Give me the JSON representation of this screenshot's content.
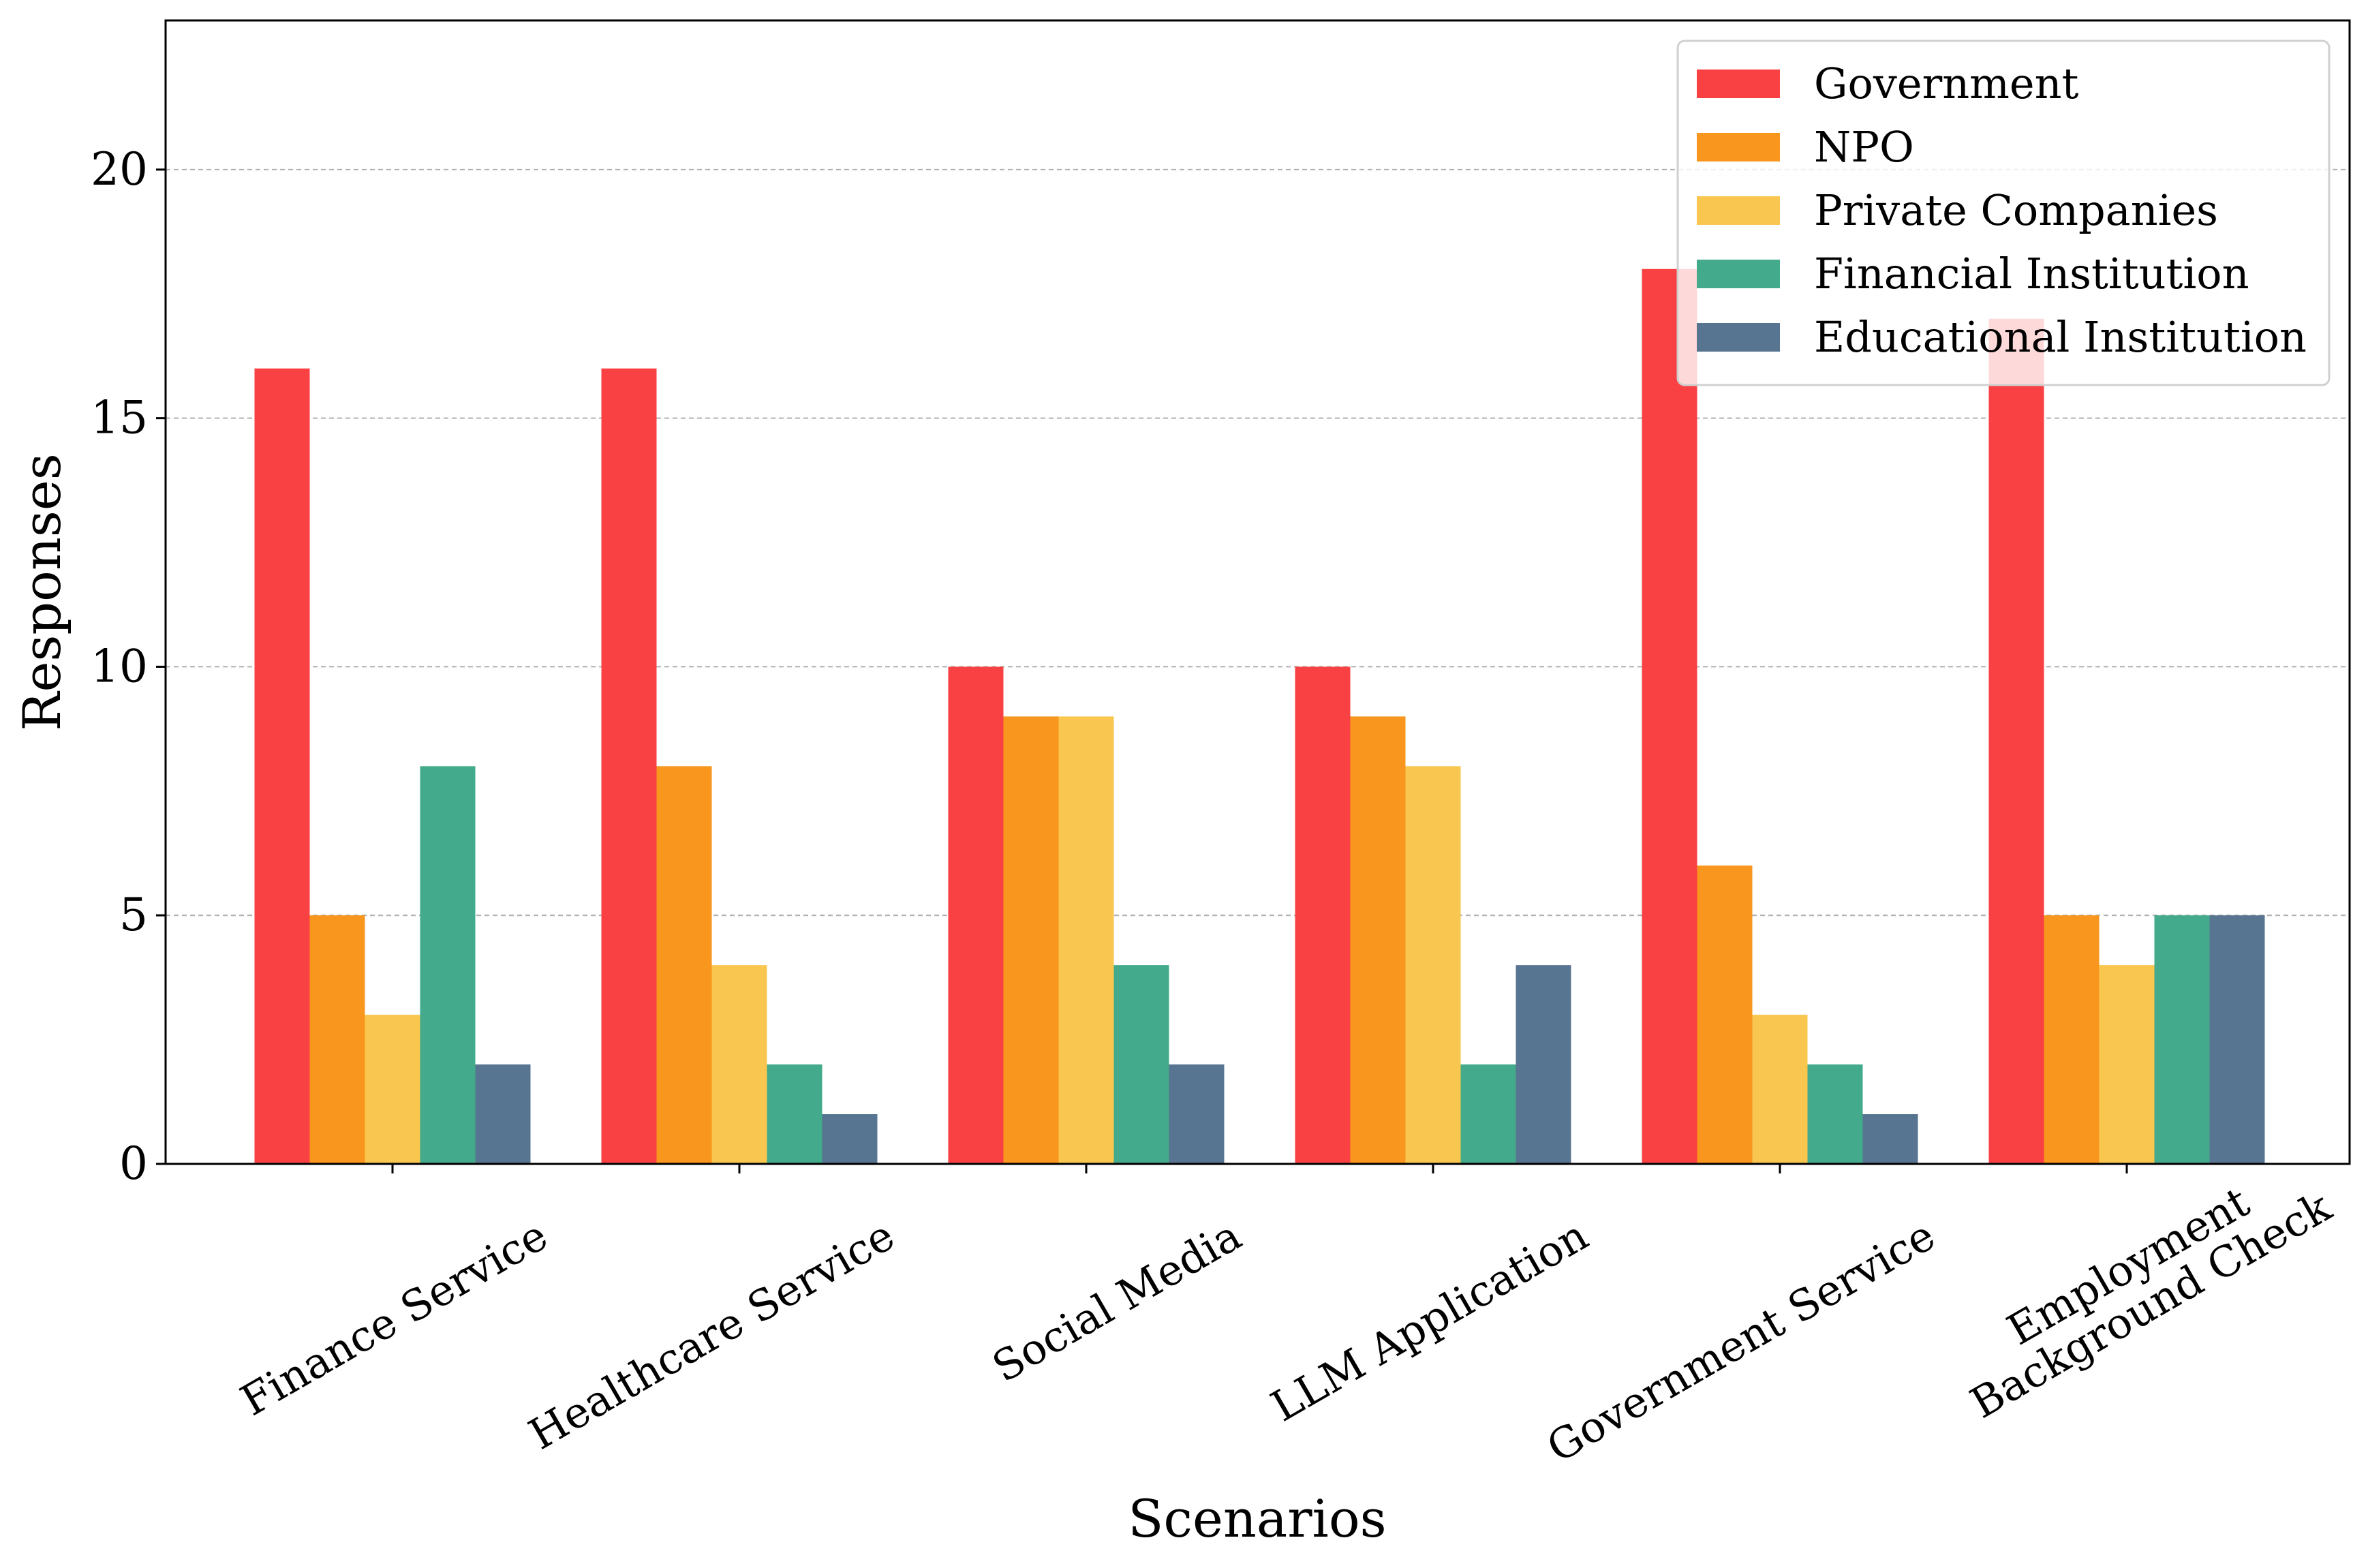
{
  "chart_data": {
    "type": "bar",
    "title": "",
    "xlabel": "Scenarios",
    "ylabel": "Responses",
    "ylim": [
      0,
      23
    ],
    "yticks": [
      0,
      5,
      10,
      15,
      20
    ],
    "grid": "horizontal-dashed",
    "legend_position": "top-right",
    "categories": [
      [
        "Finance Service"
      ],
      [
        "Healthcare Service"
      ],
      [
        "Social Media"
      ],
      [
        "LLM Application"
      ],
      [
        "Government Service"
      ],
      [
        "Employment",
        "Background Check"
      ]
    ],
    "series": [
      {
        "name": "Government",
        "color": "#f94144",
        "values": [
          16,
          16,
          10,
          10,
          18,
          17
        ]
      },
      {
        "name": "NPO",
        "color": "#f8961e",
        "values": [
          5,
          8,
          9,
          9,
          6,
          5
        ]
      },
      {
        "name": "Private Companies",
        "color": "#f9c74f",
        "values": [
          3,
          4,
          9,
          8,
          3,
          4
        ]
      },
      {
        "name": "Financial Institution",
        "color": "#43aa8b",
        "values": [
          8,
          2,
          4,
          2,
          2,
          5
        ]
      },
      {
        "name": "Educational Institution",
        "color": "#577590",
        "values": [
          2,
          1,
          2,
          4,
          1,
          5
        ]
      }
    ]
  }
}
